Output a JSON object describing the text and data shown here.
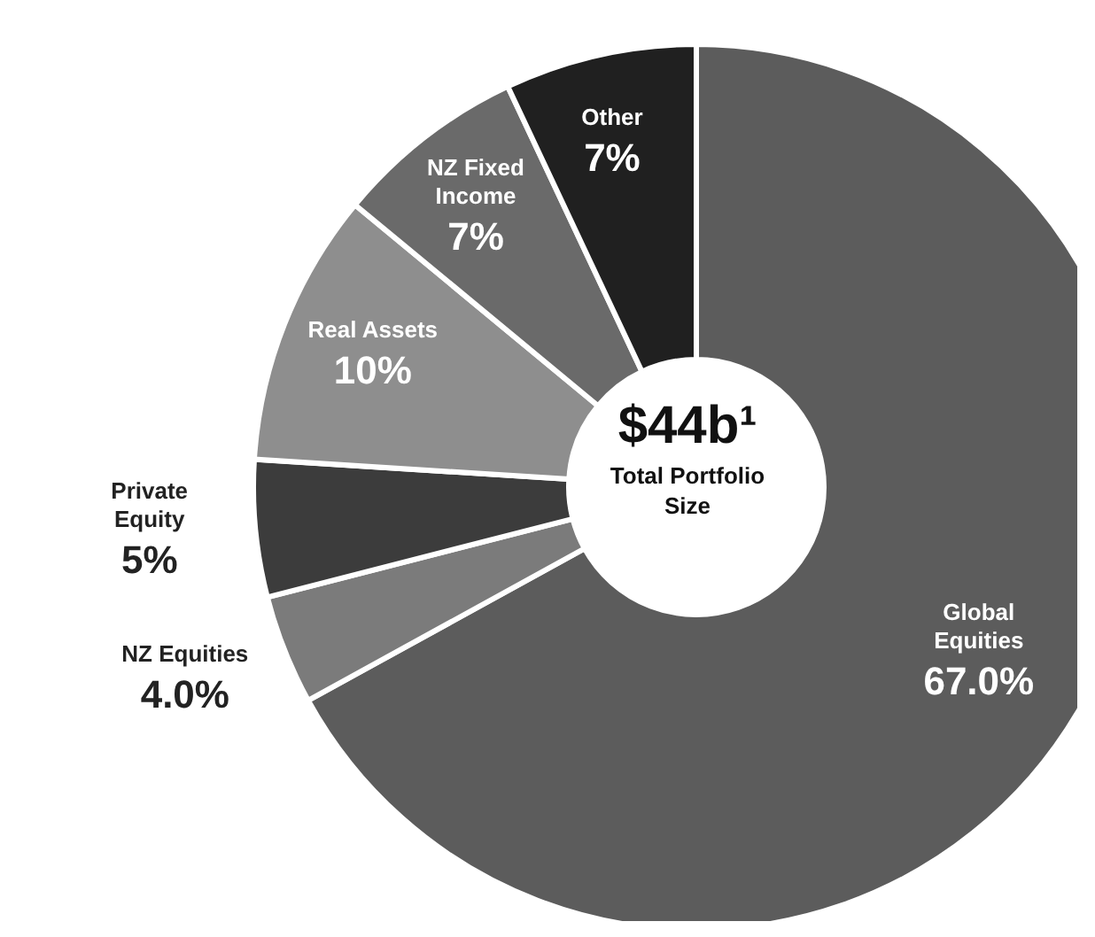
{
  "chart_data": {
    "type": "donut",
    "categories": [
      "Global Equities",
      "NZ Equities",
      "Private Equity",
      "Real Assets",
      "NZ Fixed Income",
      "Other"
    ],
    "values": [
      67.0,
      4.0,
      5,
      10,
      7,
      7
    ],
    "value_labels": [
      "67.0%",
      "4.0%",
      "5%",
      "10%",
      "7%",
      "7%"
    ],
    "colors": [
      "#5c5c5c",
      "#7b7b7b",
      "#3c3c3c",
      "#8e8e8e",
      "#6a6a6a",
      "#202020"
    ],
    "annotations": [
      "$44b¹",
      "Total Portfolio Size"
    ]
  }
}
